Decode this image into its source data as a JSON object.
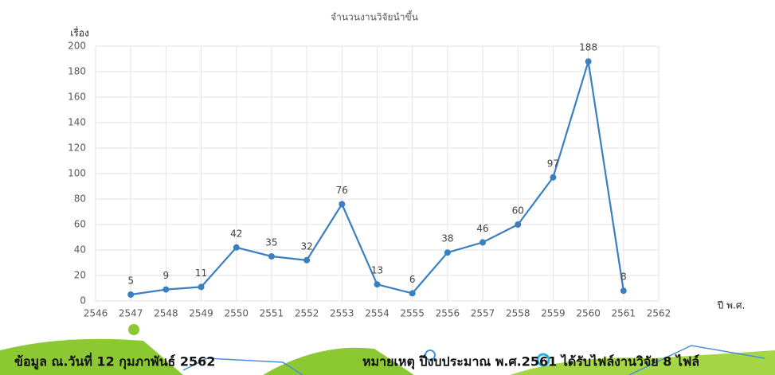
{
  "chart_data": {
    "type": "line",
    "title": "จำนวนงานวิจัยนำขึ้น",
    "y_label": "เรื่อง",
    "x_label": "ปี พ.ศ.",
    "x": [
      2547,
      2548,
      2549,
      2550,
      2551,
      2552,
      2553,
      2554,
      2555,
      2556,
      2557,
      2558,
      2559,
      2560,
      2561
    ],
    "values": [
      5,
      9,
      11,
      42,
      35,
      32,
      76,
      13,
      6,
      38,
      46,
      60,
      97,
      188,
      8
    ],
    "color": "#3a7fc1",
    "xlim": [
      2546,
      2562
    ],
    "xticks": [
      2546,
      2547,
      2548,
      2549,
      2550,
      2551,
      2552,
      2553,
      2554,
      2555,
      2556,
      2557,
      2558,
      2559,
      2560,
      2561,
      2562
    ],
    "ylim": [
      0,
      200
    ],
    "yticks": [
      0,
      20,
      40,
      60,
      80,
      100,
      120,
      140,
      160,
      180,
      200
    ],
    "grid": true
  },
  "footer": {
    "date_note": "ข้อมูล ณ.วันที่ 12 กุมภาพันธ์ 2562",
    "remark": "หมายเหตุ ปีงบประมาณ พ.ศ.2561 ได้รับไฟล์งานวิจัย 8 ไฟล์"
  }
}
